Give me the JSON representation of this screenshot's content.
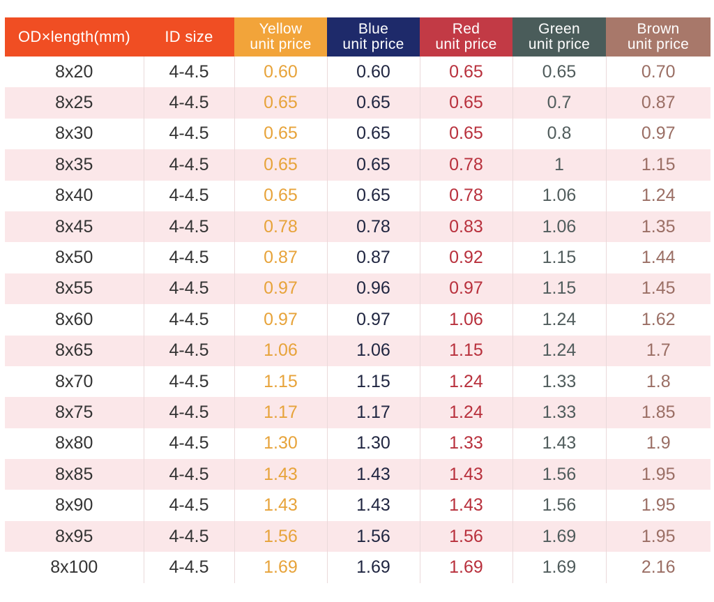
{
  "colors": {
    "header_od": "#f04e23",
    "header_id": "#f04e23",
    "header_yellow": "#f2a43a",
    "header_blue": "#1e2a6a",
    "header_red": "#c23a45",
    "header_green": "#4a5c5a",
    "header_brown": "#a8786a",
    "text_size": "#333333",
    "text_yellow": "#e7a33a",
    "text_blue": "#1f2540",
    "text_red": "#b8303c",
    "text_green": "#505c5c",
    "text_brown": "#9a6e64",
    "row_stripe": "#fbe7e9"
  },
  "table": {
    "columns": [
      {
        "key": "od",
        "label": "OD×length(mm)",
        "header_color_key": "header_od",
        "text_color_key": "text_size"
      },
      {
        "key": "id",
        "label": "ID size",
        "header_color_key": "header_id",
        "text_color_key": "text_size"
      },
      {
        "key": "yellow",
        "label": "Yellow\nunit price",
        "header_color_key": "header_yellow",
        "text_color_key": "text_yellow"
      },
      {
        "key": "blue",
        "label": "Blue\nunit price",
        "header_color_key": "header_blue",
        "text_color_key": "text_blue"
      },
      {
        "key": "red",
        "label": "Red\nunit price",
        "header_color_key": "header_red",
        "text_color_key": "text_red"
      },
      {
        "key": "green",
        "label": "Green\nunit price",
        "header_color_key": "header_green",
        "text_color_key": "text_green"
      },
      {
        "key": "brown",
        "label": "Brown\nunit price",
        "header_color_key": "header_brown",
        "text_color_key": "text_brown"
      }
    ],
    "rows": [
      {
        "od": "8x20",
        "id": "4-4.5",
        "yellow": "0.60",
        "blue": "0.60",
        "red": "0.65",
        "green": "0.65",
        "brown": "0.70"
      },
      {
        "od": "8x25",
        "id": "4-4.5",
        "yellow": "0.65",
        "blue": "0.65",
        "red": "0.65",
        "green": "0.7",
        "brown": "0.87"
      },
      {
        "od": "8x30",
        "id": "4-4.5",
        "yellow": "0.65",
        "blue": "0.65",
        "red": "0.65",
        "green": "0.8",
        "brown": "0.97"
      },
      {
        "od": "8x35",
        "id": "4-4.5",
        "yellow": "0.65",
        "blue": "0.65",
        "red": "0.78",
        "green": "1",
        "brown": "1.15"
      },
      {
        "od": "8x40",
        "id": "4-4.5",
        "yellow": "0.65",
        "blue": "0.65",
        "red": "0.78",
        "green": "1.06",
        "brown": "1.24"
      },
      {
        "od": "8x45",
        "id": "4-4.5",
        "yellow": "0.78",
        "blue": "0.78",
        "red": "0.83",
        "green": "1.06",
        "brown": "1.35"
      },
      {
        "od": "8x50",
        "id": "4-4.5",
        "yellow": "0.87",
        "blue": "0.87",
        "red": "0.92",
        "green": "1.15",
        "brown": "1.44"
      },
      {
        "od": "8x55",
        "id": "4-4.5",
        "yellow": "0.97",
        "blue": "0.96",
        "red": "0.97",
        "green": "1.15",
        "brown": "1.45"
      },
      {
        "od": "8x60",
        "id": "4-4.5",
        "yellow": "0.97",
        "blue": "0.97",
        "red": "1.06",
        "green": "1.24",
        "brown": "1.62"
      },
      {
        "od": "8x65",
        "id": "4-4.5",
        "yellow": "1.06",
        "blue": "1.06",
        "red": "1.15",
        "green": "1.24",
        "brown": "1.7"
      },
      {
        "od": "8x70",
        "id": "4-4.5",
        "yellow": "1.15",
        "blue": "1.15",
        "red": "1.24",
        "green": "1.33",
        "brown": "1.8"
      },
      {
        "od": "8x75",
        "id": "4-4.5",
        "yellow": "1.17",
        "blue": "1.17",
        "red": "1.24",
        "green": "1.33",
        "brown": "1.85"
      },
      {
        "od": "8x80",
        "id": "4-4.5",
        "yellow": "1.30",
        "blue": "1.30",
        "red": "1.33",
        "green": "1.43",
        "brown": "1.9"
      },
      {
        "od": "8x85",
        "id": "4-4.5",
        "yellow": "1.43",
        "blue": "1.43",
        "red": "1.43",
        "green": "1.56",
        "brown": "1.95"
      },
      {
        "od": "8x90",
        "id": "4-4.5",
        "yellow": "1.43",
        "blue": "1.43",
        "red": "1.43",
        "green": "1.56",
        "brown": "1.95"
      },
      {
        "od": "8x95",
        "id": "4-4.5",
        "yellow": "1.56",
        "blue": "1.56",
        "red": "1.56",
        "green": "1.69",
        "brown": "1.95"
      },
      {
        "od": "8x100",
        "id": "4-4.5",
        "yellow": "1.69",
        "blue": "1.69",
        "red": "1.69",
        "green": "1.69",
        "brown": "2.16"
      }
    ]
  }
}
